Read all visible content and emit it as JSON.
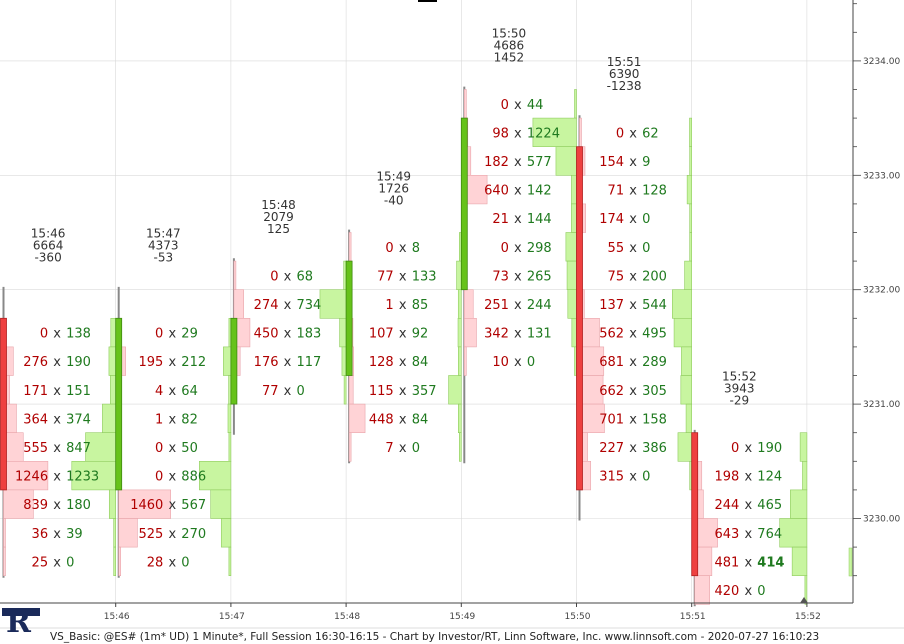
{
  "title": "VS_Basic: @ES# (1m* UD) 1 Minute*, Full Session 16:30-16:15 - Chart by Investor/RT, Linn Software, Inc. www.linnsoft.com - 2020-07-27 16:10:23",
  "logo_letter": "R",
  "colors": {
    "bid_fill": "#ffd3d6",
    "bid_stroke": "#e8a5ab",
    "ask_fill": "#c8f5a0",
    "ask_stroke": "#8fcc5e",
    "bid_text": "#b00000",
    "ask_text": "#1f7a1f",
    "up_candle": "#66c21a",
    "down_candle": "#ee4040",
    "wick": "#888888",
    "grid": "#d9d9d9",
    "axis": "#444444",
    "highlight_text": "#1f7a1f"
  },
  "chart_data": {
    "type": "footprint",
    "price_ticks": [
      "3230.00",
      "3231.00",
      "3232.00",
      "3233.00",
      "3234.00"
    ],
    "time_ticks": [
      "15:46",
      "15:47",
      "15:48",
      "15:49",
      "15:50",
      "15:51",
      "15:52"
    ],
    "bars": [
      {
        "time": "15:46",
        "volume": "6664",
        "delta": "-360",
        "open": 3231.75,
        "close": 3230.5,
        "high": 3232.0,
        "low": 3229.75,
        "levels": [
          {
            "price": 3231.75,
            "bid": "0",
            "ask": "138"
          },
          {
            "price": 3231.5,
            "bid": "276",
            "ask": "190"
          },
          {
            "price": 3231.25,
            "bid": "171",
            "ask": "151"
          },
          {
            "price": 3231.0,
            "bid": "364",
            "ask": "374"
          },
          {
            "price": 3230.75,
            "bid": "555",
            "ask": "847"
          },
          {
            "price": 3230.5,
            "bid": "1246",
            "ask": "1233"
          },
          {
            "price": 3230.25,
            "bid": "839",
            "ask": "180"
          },
          {
            "price": 3230.0,
            "bid": "36",
            "ask": "39"
          },
          {
            "price": 3229.75,
            "bid": "25",
            "ask": "0"
          }
        ]
      },
      {
        "time": "15:47",
        "volume": "4373",
        "delta": "-53",
        "open": 3230.5,
        "close": 3231.75,
        "high": 3232.0,
        "low": 3229.75,
        "levels": [
          {
            "price": 3231.75,
            "bid": "0",
            "ask": "29"
          },
          {
            "price": 3231.5,
            "bid": "195",
            "ask": "212"
          },
          {
            "price": 3231.25,
            "bid": "4",
            "ask": "64"
          },
          {
            "price": 3231.0,
            "bid": "1",
            "ask": "82"
          },
          {
            "price": 3230.75,
            "bid": "0",
            "ask": "50"
          },
          {
            "price": 3230.5,
            "bid": "0",
            "ask": "886"
          },
          {
            "price": 3230.25,
            "bid": "1460",
            "ask": "567"
          },
          {
            "price": 3230.0,
            "bid": "525",
            "ask": "270"
          },
          {
            "price": 3229.75,
            "bid": "28",
            "ask": "0"
          }
        ]
      },
      {
        "time": "15:48",
        "volume": "2079",
        "delta": "125",
        "open": 3231.25,
        "close": 3231.75,
        "high": 3232.25,
        "low": 3231.0,
        "levels": [
          {
            "price": 3232.25,
            "bid": "0",
            "ask": "68"
          },
          {
            "price": 3232.0,
            "bid": "274",
            "ask": "734"
          },
          {
            "price": 3231.75,
            "bid": "450",
            "ask": "183"
          },
          {
            "price": 3231.5,
            "bid": "176",
            "ask": "117"
          },
          {
            "price": 3231.25,
            "bid": "77",
            "ask": "0"
          }
        ]
      },
      {
        "time": "15:49",
        "volume": "1726",
        "delta": "-40",
        "open": 3231.5,
        "close": 3232.25,
        "high": 3232.5,
        "low": 3230.75,
        "levels": [
          {
            "price": 3232.5,
            "bid": "0",
            "ask": "8"
          },
          {
            "price": 3232.25,
            "bid": "77",
            "ask": "133"
          },
          {
            "price": 3232.0,
            "bid": "1",
            "ask": "85"
          },
          {
            "price": 3231.75,
            "bid": "107",
            "ask": "92"
          },
          {
            "price": 3231.5,
            "bid": "128",
            "ask": "84"
          },
          {
            "price": 3231.25,
            "bid": "115",
            "ask": "357"
          },
          {
            "price": 3231.0,
            "bid": "448",
            "ask": "84"
          },
          {
            "price": 3230.75,
            "bid": "7",
            "ask": "0"
          }
        ]
      },
      {
        "time": "15:50",
        "volume": "4686",
        "delta": "1452",
        "open": 3232.25,
        "close": 3233.5,
        "high": 3233.75,
        "low": 3230.75,
        "levels": [
          {
            "price": 3233.75,
            "bid": "0",
            "ask": "44"
          },
          {
            "price": 3233.5,
            "bid": "98",
            "ask": "1224"
          },
          {
            "price": 3233.25,
            "bid": "182",
            "ask": "577"
          },
          {
            "price": 3233.0,
            "bid": "640",
            "ask": "142"
          },
          {
            "price": 3232.75,
            "bid": "21",
            "ask": "144"
          },
          {
            "price": 3232.5,
            "bid": "0",
            "ask": "298"
          },
          {
            "price": 3232.25,
            "bid": "73",
            "ask": "265"
          },
          {
            "price": 3232.0,
            "bid": "251",
            "ask": "244"
          },
          {
            "price": 3231.75,
            "bid": "342",
            "ask": "131"
          },
          {
            "price": 3231.5,
            "bid": "10",
            "ask": "0"
          }
        ]
      },
      {
        "time": "15:51",
        "volume": "6390",
        "delta": "-1238",
        "open": 3233.25,
        "close": 3230.5,
        "high": 3233.5,
        "low": 3230.25,
        "levels": [
          {
            "price": 3233.5,
            "bid": "0",
            "ask": "62"
          },
          {
            "price": 3233.25,
            "bid": "154",
            "ask": "9"
          },
          {
            "price": 3233.0,
            "bid": "71",
            "ask": "128"
          },
          {
            "price": 3232.75,
            "bid": "174",
            "ask": "0"
          },
          {
            "price": 3232.5,
            "bid": "55",
            "ask": "0"
          },
          {
            "price": 3232.25,
            "bid": "75",
            "ask": "200"
          },
          {
            "price": 3232.0,
            "bid": "137",
            "ask": "544"
          },
          {
            "price": 3231.75,
            "bid": "562",
            "ask": "495"
          },
          {
            "price": 3231.5,
            "bid": "681",
            "ask": "289"
          },
          {
            "price": 3231.25,
            "bid": "662",
            "ask": "305"
          },
          {
            "price": 3231.0,
            "bid": "701",
            "ask": "158"
          },
          {
            "price": 3230.75,
            "bid": "227",
            "ask": "386"
          },
          {
            "price": 3230.5,
            "bid": "315",
            "ask": "0"
          }
        ]
      },
      {
        "time": "15:52",
        "volume": "3943",
        "delta": "-29",
        "open": 3230.75,
        "close": 3229.75,
        "high": 3230.75,
        "low": 3229.5,
        "levels": [
          {
            "price": 3230.75,
            "bid": "0",
            "ask": "190"
          },
          {
            "price": 3230.5,
            "bid": "198",
            "ask": "124"
          },
          {
            "price": 3230.25,
            "bid": "244",
            "ask": "465"
          },
          {
            "price": 3230.0,
            "bid": "643",
            "ask": "764"
          },
          {
            "price": 3229.75,
            "bid": "481",
            "ask": "414",
            "ask_highlight": true
          },
          {
            "price": 3229.5,
            "bid": "420",
            "ask": "0"
          }
        ]
      }
    ]
  }
}
